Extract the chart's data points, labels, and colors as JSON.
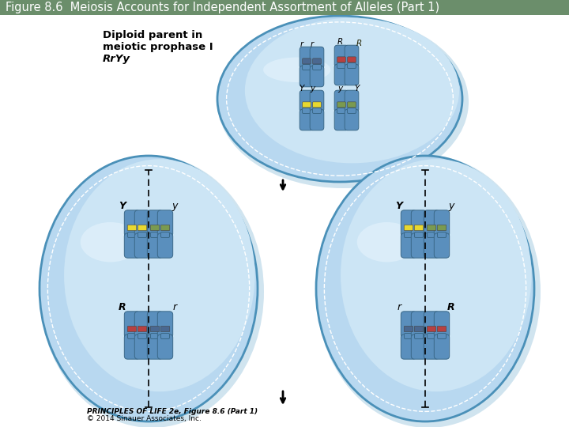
{
  "title": "Figure 8.6  Meiosis Accounts for Independent Assortment of Alleles (Part 1)",
  "title_bg": "#6b8e6b",
  "title_color": "#ffffff",
  "title_fontsize": 10.5,
  "bg_color": "#ffffff",
  "chrom_color": "#5a8fbd",
  "red_band": "#b84040",
  "yellow_band": "#e8d830",
  "green_band": "#7a9a50",
  "blue_band": "#4a6890",
  "footer_text1": "PRINCIPLES OF LIFE 2e, Figure 8.6 (Part 1)",
  "footer_text2": "© 2014 Sinauer Associates, Inc.",
  "top_text1": "Diploid parent in",
  "top_text2": "meiotic prophase I",
  "top_text3": "RrYy",
  "cell_fill": "#b8d8f0",
  "cell_inner": "#cce5f5",
  "cell_edge": "#4a90b8"
}
